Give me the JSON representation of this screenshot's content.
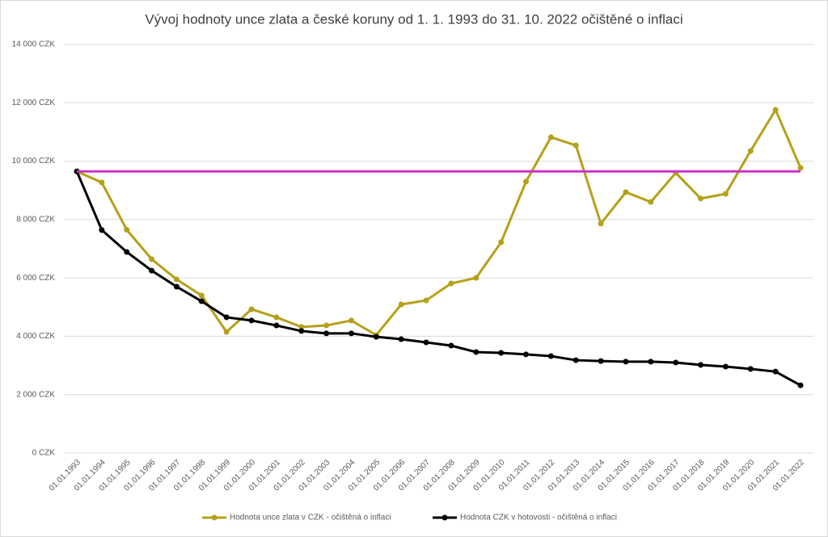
{
  "chart_data": {
    "type": "line",
    "title": "Vývoj hodnoty unce zlata a české koruny od 1. 1. 1993 do 31. 10. 2022 očištěné o inflaci",
    "categories": [
      "01.01.1993",
      "01.01.1994",
      "01.01.1995",
      "01.01.1996",
      "01.01.1997",
      "01.01.1998",
      "01.01.1999",
      "01.01.2000",
      "01.01.2001",
      "01.01.2002",
      "01.01.2003",
      "01.01.2004",
      "01.01.2005",
      "01.01.2006",
      "01.01.2007",
      "01.01.2008",
      "01.01.2009",
      "01.01.2010",
      "01.01.2011",
      "01.01.2012",
      "01.01.2013",
      "01.01.2014",
      "01.01.2015",
      "01.01.2016",
      "01.01.2017",
      "01.01.2018",
      "01.01.2019",
      "01.01.2020",
      "01.01.2021",
      "01.01.2022"
    ],
    "series": [
      {
        "name": "Hodnota unce zlata v CZK - očištěná o inflaci",
        "color": "#b5a01a",
        "marker": true,
        "values": [
          9650,
          9270,
          7650,
          6640,
          5950,
          5400,
          4150,
          4925,
          4650,
          4320,
          4370,
          4540,
          4040,
          5090,
          5230,
          5810,
          6000,
          7220,
          9300,
          10820,
          10540,
          7860,
          8940,
          8600,
          9600,
          8720,
          8880,
          10350,
          11760,
          9770
        ]
      },
      {
        "name": "Hodnota CZK v hotovosti - očištěná o inflaci",
        "color": "#000000",
        "marker": true,
        "values": [
          9650,
          7640,
          6890,
          6250,
          5700,
          5200,
          4650,
          4540,
          4370,
          4180,
          4100,
          4100,
          3980,
          3900,
          3790,
          3680,
          3460,
          3430,
          3380,
          3320,
          3180,
          3150,
          3130,
          3130,
          3100,
          3020,
          2960,
          2880,
          2790,
          2320
        ]
      },
      {
        "color": "#cc33cc",
        "marker": false,
        "values": [
          9650,
          9650,
          9650,
          9650,
          9650,
          9650,
          9650,
          9650,
          9650,
          9650,
          9650,
          9650,
          9650,
          9650,
          9650,
          9650,
          9650,
          9650,
          9650,
          9650,
          9650,
          9650,
          9650,
          9650,
          9650,
          9650,
          9650,
          9650,
          9650,
          9650
        ]
      }
    ],
    "ylim": [
      0,
      14000
    ],
    "yticks": [
      {
        "value": 0,
        "label": "0 CZK"
      },
      {
        "value": 2000,
        "label": "2 000 CZK"
      },
      {
        "value": 4000,
        "label": "4 000 CZK"
      },
      {
        "value": 6000,
        "label": "6 000 CZK"
      },
      {
        "value": 8000,
        "label": "8 000 CZK"
      },
      {
        "value": 10000,
        "label": "10 000 CZK"
      },
      {
        "value": 12000,
        "label": "12 000 CZK"
      },
      {
        "value": 14000,
        "label": "14 000 CZK"
      }
    ],
    "grid": true,
    "legend": "bottom"
  }
}
